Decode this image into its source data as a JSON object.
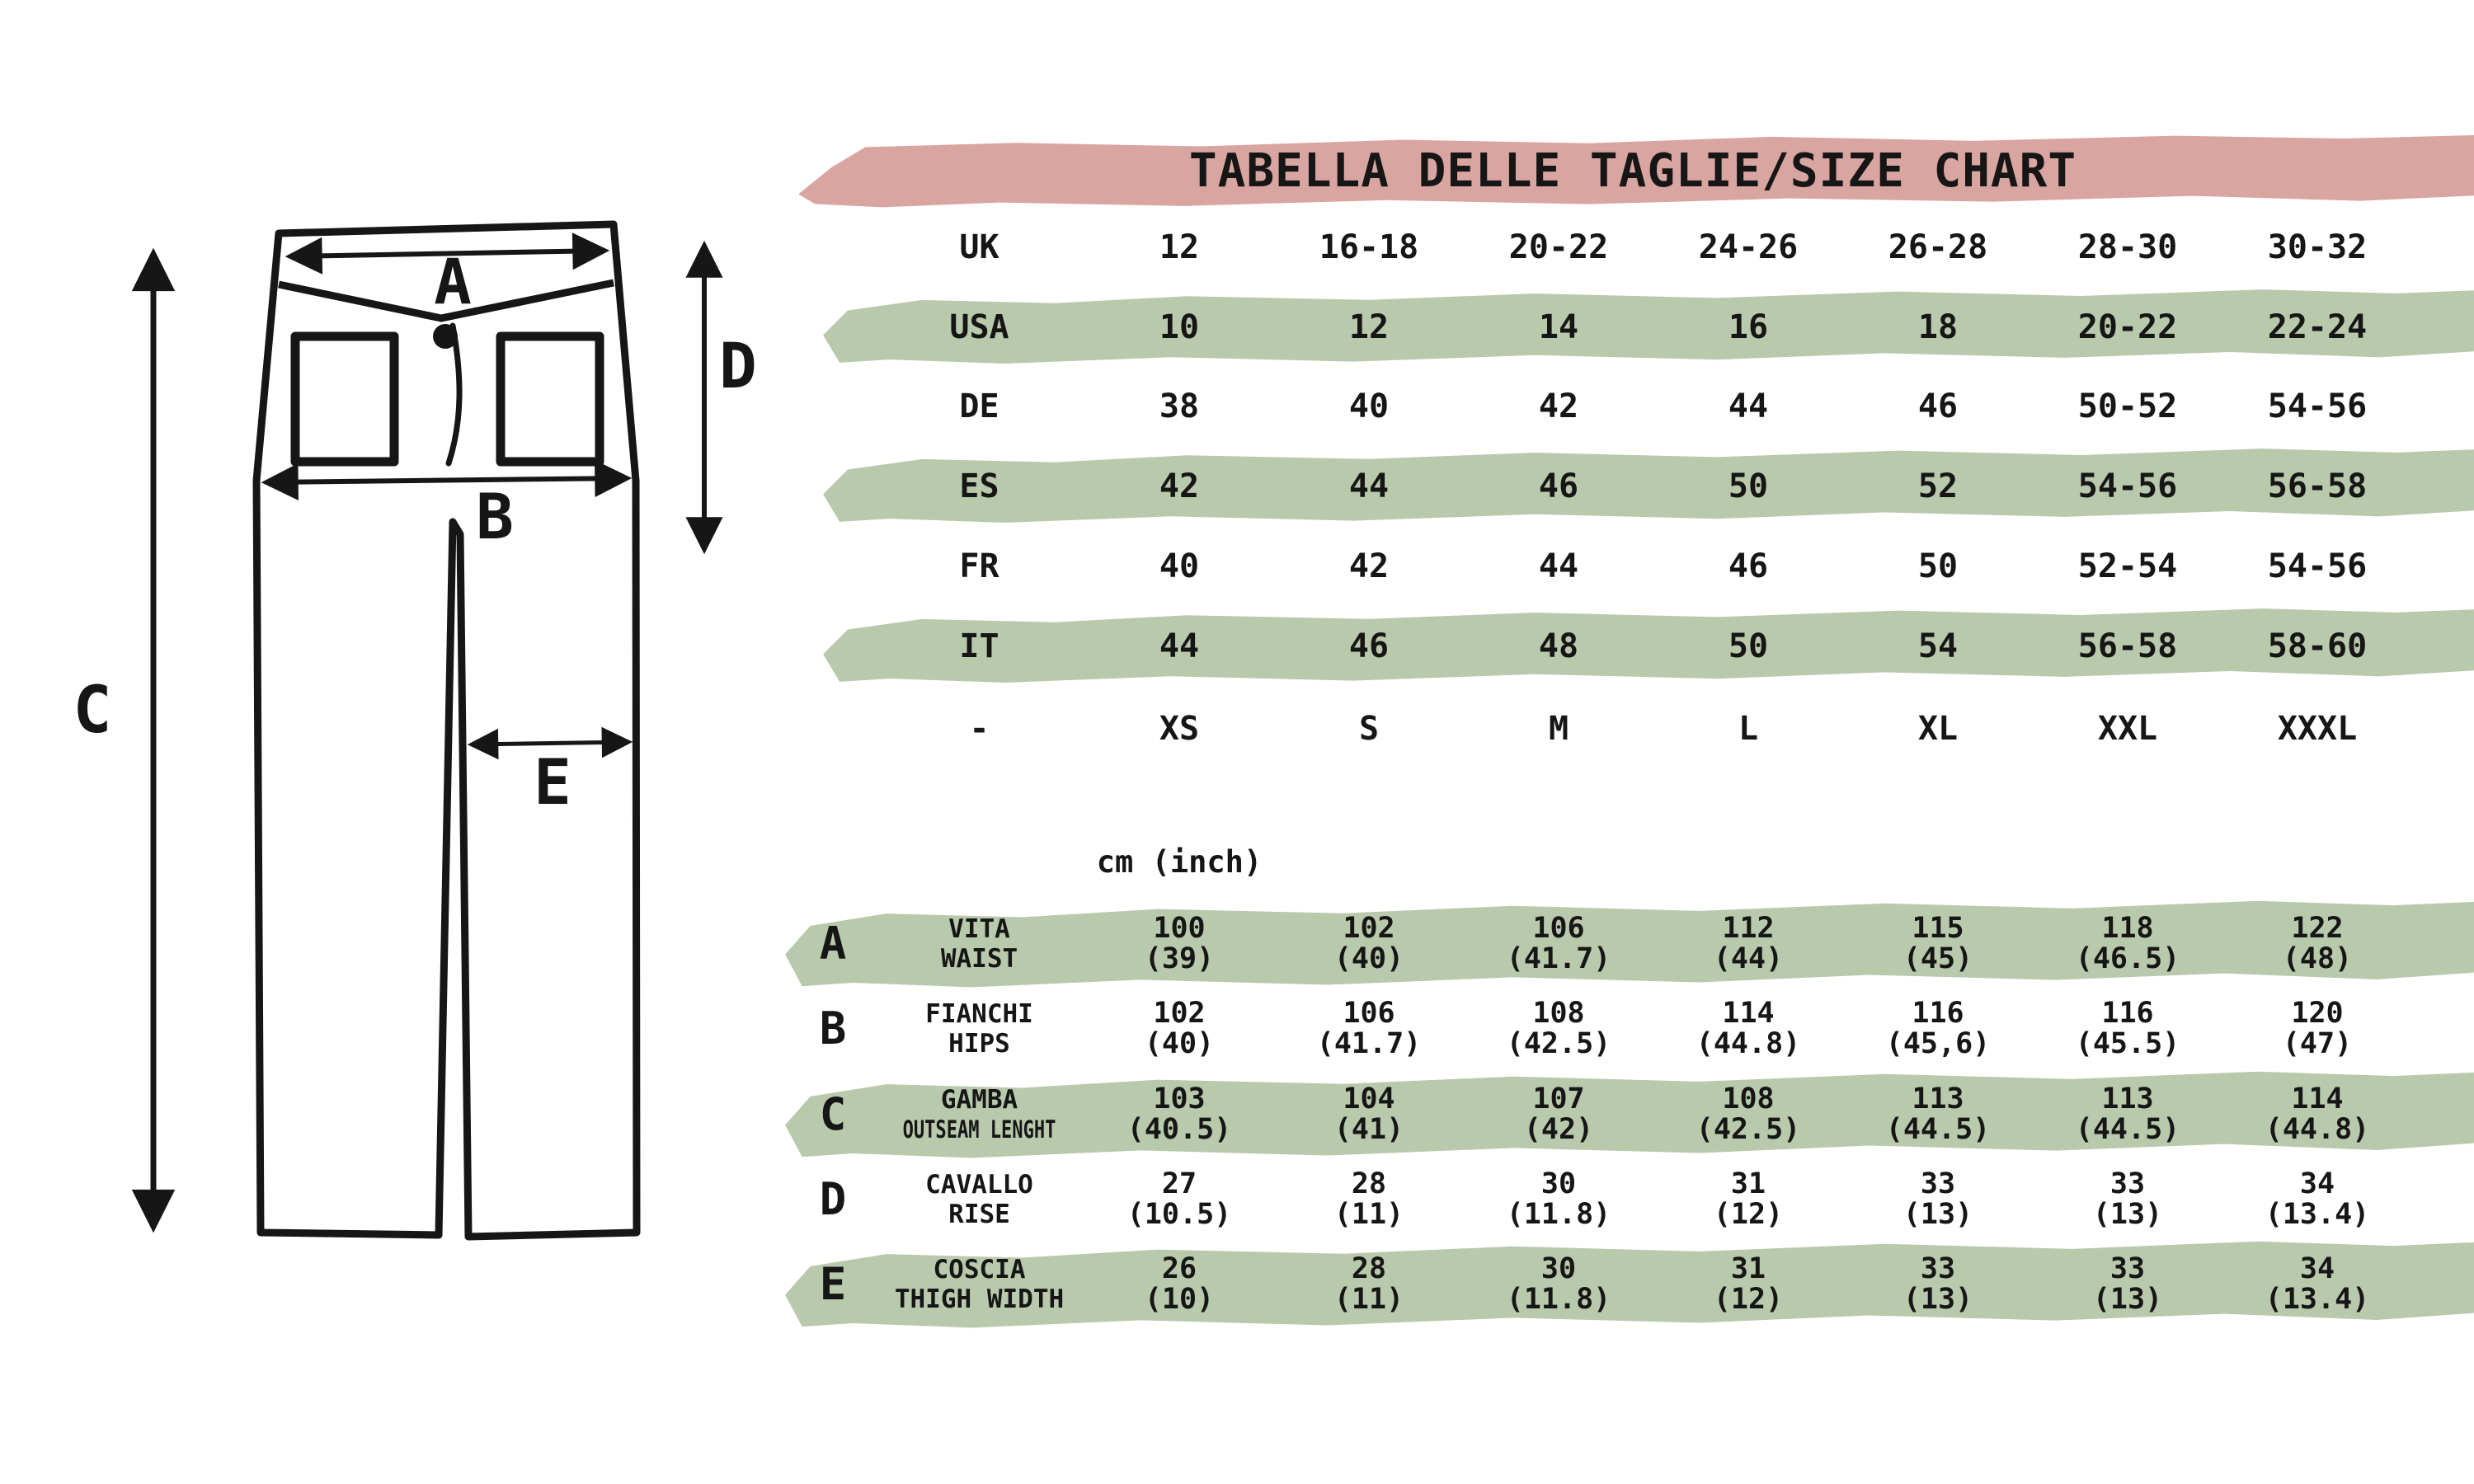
{
  "title": "TABELLA DELLE TAGLIE/SIZE CHART",
  "units_label": "cm (inch)",
  "colors": {
    "pink": "#d9a5a1",
    "green": "#b9c9ac",
    "ink": "#161616",
    "background": "#ffffff"
  },
  "diagram": {
    "labels": {
      "A": "A",
      "B": "B",
      "C": "C",
      "D": "D",
      "E": "E"
    }
  },
  "size_rows": [
    {
      "region": "UK",
      "highlight": false,
      "values": [
        "12",
        "16-18",
        "20-22",
        "24-26",
        "26-28",
        "28-30",
        "30-32"
      ]
    },
    {
      "region": "USA",
      "highlight": true,
      "values": [
        "10",
        "12",
        "14",
        "16",
        "18",
        "20-22",
        "22-24"
      ]
    },
    {
      "region": "DE",
      "highlight": false,
      "values": [
        "38",
        "40",
        "42",
        "44",
        "46",
        "50-52",
        "54-56"
      ]
    },
    {
      "region": "ES",
      "highlight": true,
      "values": [
        "42",
        "44",
        "46",
        "50",
        "52",
        "54-56",
        "56-58"
      ]
    },
    {
      "region": "FR",
      "highlight": false,
      "values": [
        "40",
        "42",
        "44",
        "46",
        "50",
        "52-54",
        "54-56"
      ]
    },
    {
      "region": "IT",
      "highlight": true,
      "values": [
        "44",
        "46",
        "48",
        "50",
        "54",
        "56-58",
        "58-60"
      ]
    },
    {
      "region": "-",
      "highlight": false,
      "values": [
        "XS",
        "S",
        "M",
        "L",
        "XL",
        "XXL",
        "XXXL"
      ]
    }
  ],
  "measurement_rows": [
    {
      "letter": "A",
      "label_it": "VITA",
      "label_en": "WAIST",
      "condensed_en": false,
      "highlight": true,
      "cm": [
        "100",
        "102",
        "106",
        "112",
        "115",
        "118",
        "122"
      ],
      "inch": [
        "(39)",
        "(40)",
        "(41.7)",
        "(44)",
        "(45)",
        "(46.5)",
        "(48)"
      ]
    },
    {
      "letter": "B",
      "label_it": "FIANCHI",
      "label_en": "HIPS",
      "condensed_en": false,
      "highlight": false,
      "cm": [
        "102",
        "106",
        "108",
        "114",
        "116",
        "116",
        "120"
      ],
      "inch": [
        "(40)",
        "(41.7)",
        "(42.5)",
        "(44.8)",
        "(45,6)",
        "(45.5)",
        "(47)"
      ]
    },
    {
      "letter": "C",
      "label_it": "GAMBA",
      "label_en": "OUTSEAM LENGHT",
      "condensed_en": true,
      "highlight": true,
      "cm": [
        "103",
        "104",
        "107",
        "108",
        "113",
        "113",
        "114"
      ],
      "inch": [
        "(40.5)",
        "(41)",
        "(42)",
        "(42.5)",
        "(44.5)",
        "(44.5)",
        "(44.8)"
      ]
    },
    {
      "letter": "D",
      "label_it": "CAVALLO",
      "label_en": "RISE",
      "condensed_en": false,
      "highlight": false,
      "cm": [
        "27",
        "28",
        "30",
        "31",
        "33",
        "33",
        "34"
      ],
      "inch": [
        "(10.5)",
        "(11)",
        "(11.8)",
        "(12)",
        "(13)",
        "(13)",
        "(13.4)"
      ]
    },
    {
      "letter": "E",
      "label_it": "COSCIA",
      "label_en": "THIGH WIDTH",
      "condensed_en": false,
      "highlight": true,
      "cm": [
        "26",
        "28",
        "30",
        "31",
        "33",
        "33",
        "34"
      ],
      "inch": [
        "(10)",
        "(11)",
        "(11.8)",
        "(12)",
        "(13)",
        "(13)",
        "(13.4)"
      ]
    }
  ]
}
